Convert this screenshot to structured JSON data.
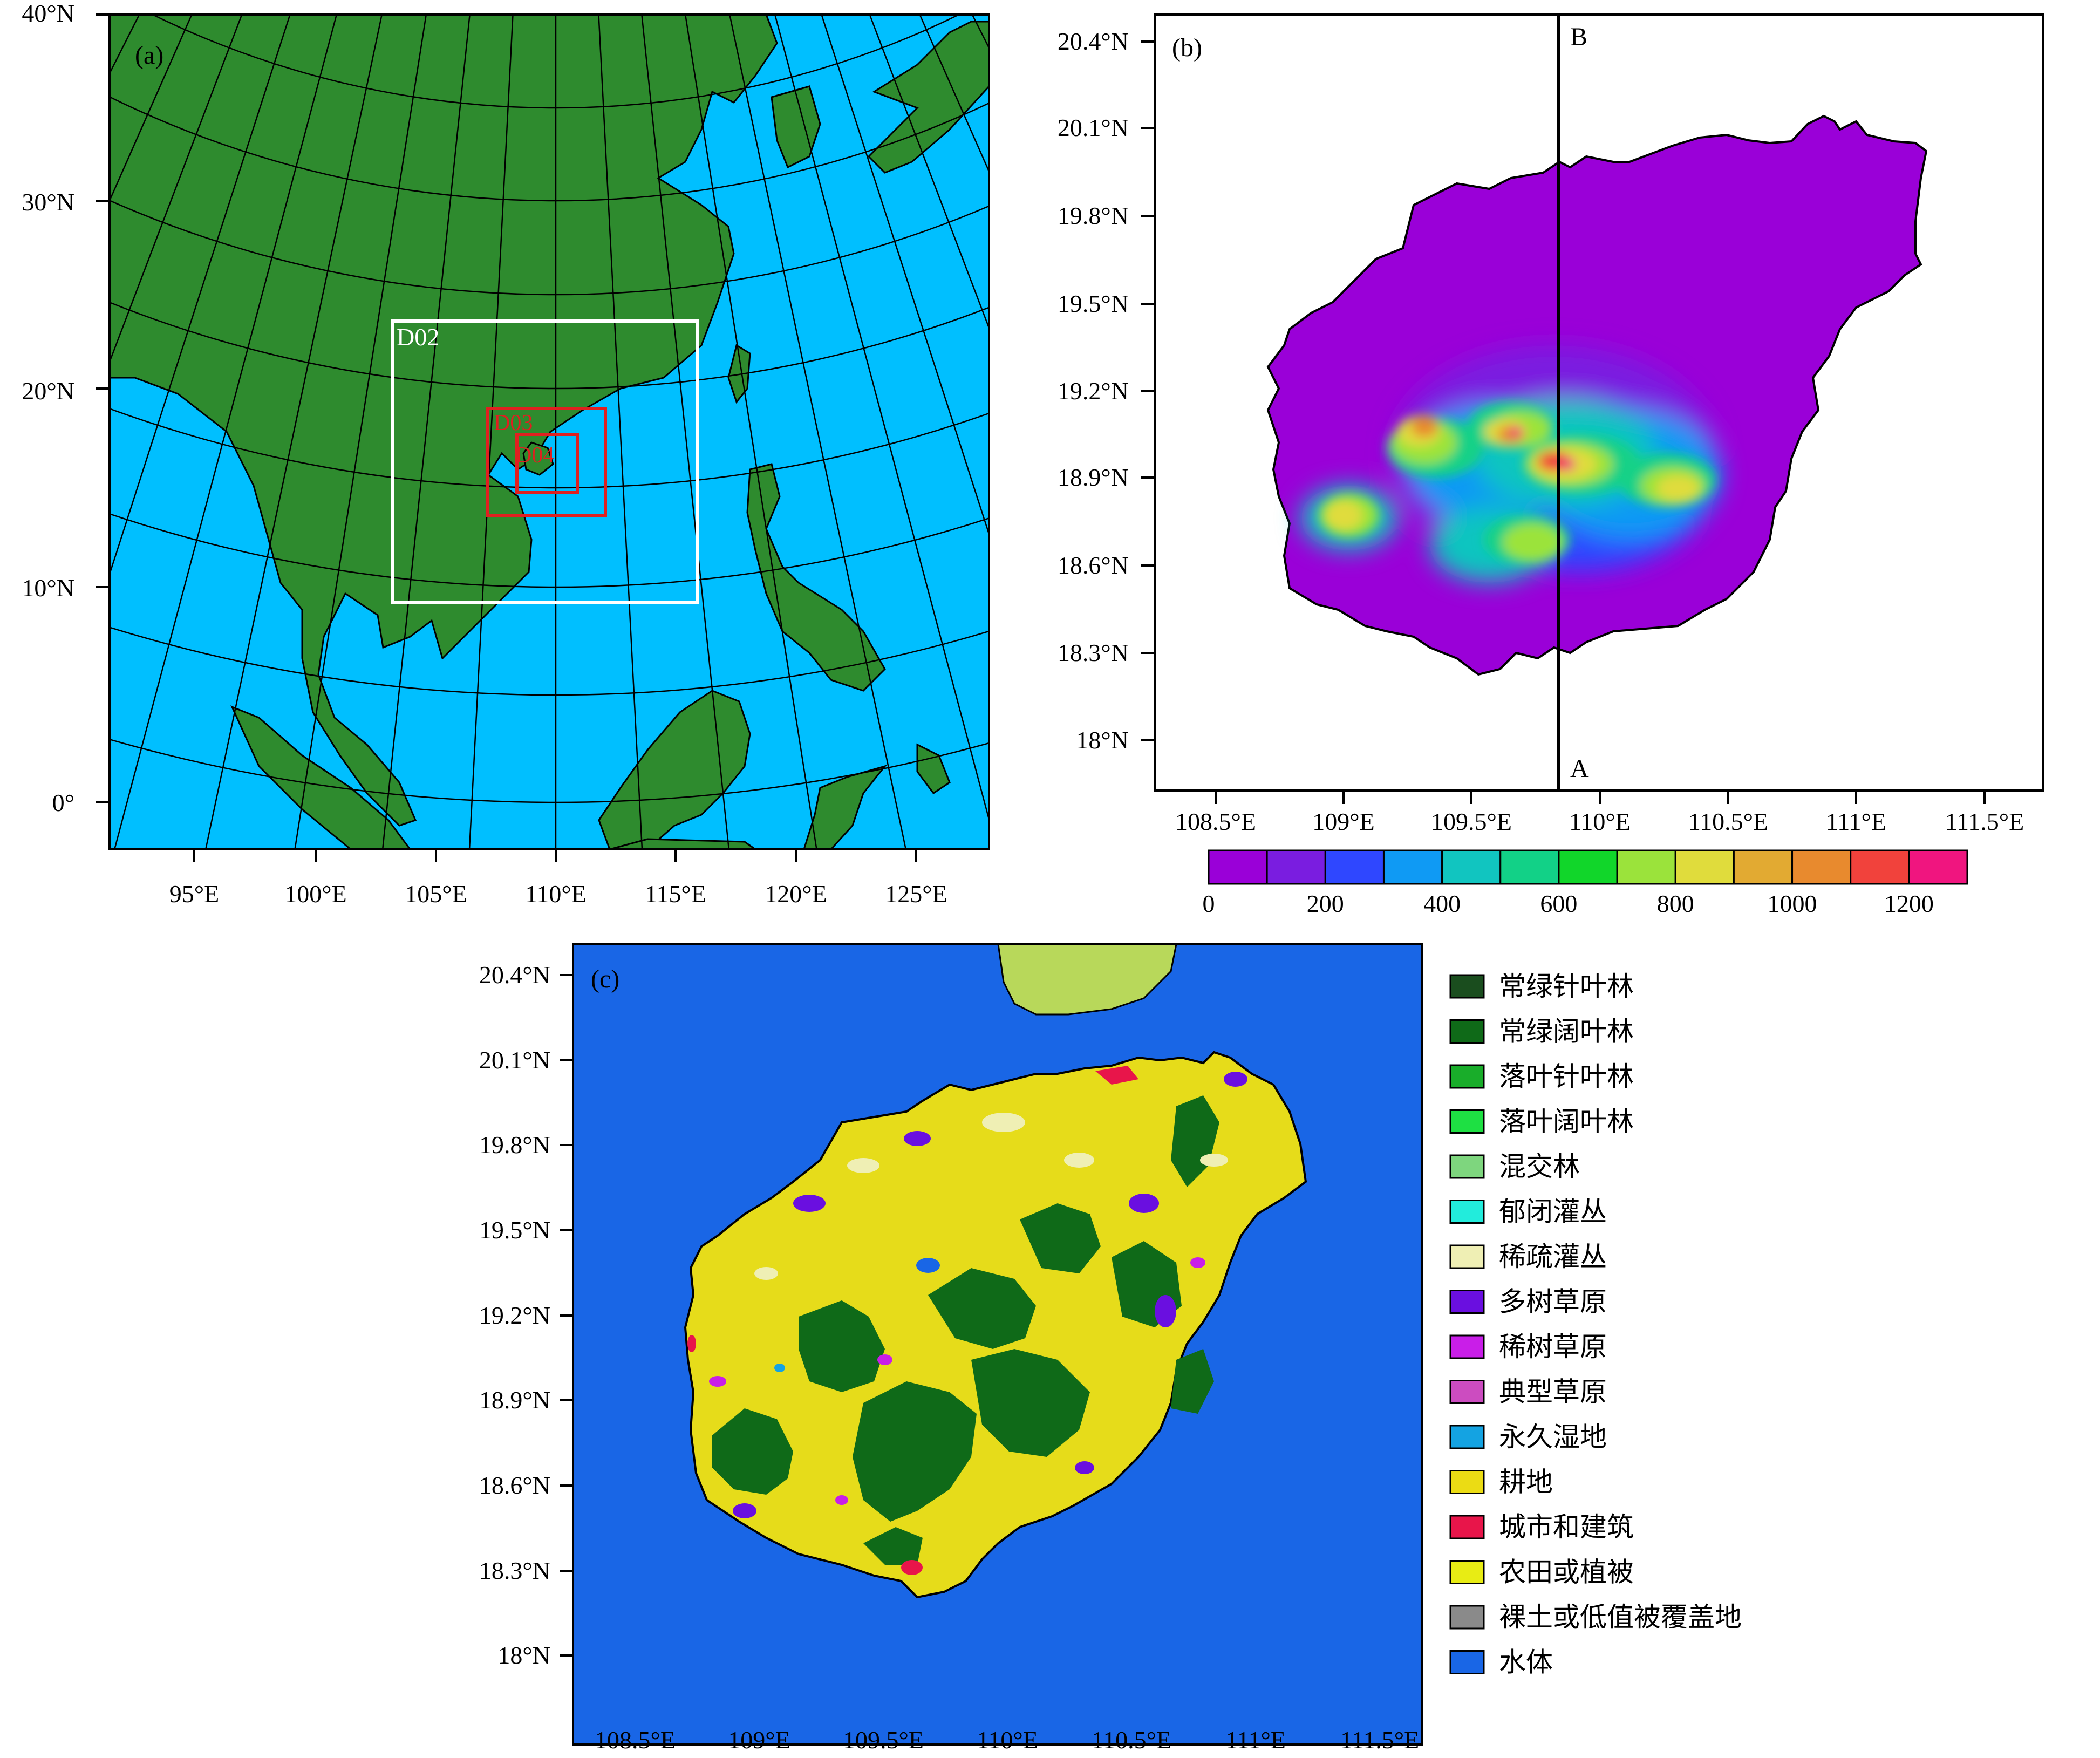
{
  "colors": {
    "ocean": "#00bfff",
    "land": "#2e8b2e",
    "water_body": "#1966e6",
    "box_white": "#ffffff",
    "box_red": "#e02020",
    "island_base_b": "#9a00d8"
  },
  "panel_a": {
    "label": "(a)",
    "lat_labels": [
      "40°N",
      "30°N",
      "20°N",
      "10°N",
      "0°"
    ],
    "lon_labels": [
      "95°E",
      "100°E",
      "105°E",
      "110°E",
      "115°E",
      "120°E",
      "125°E"
    ],
    "domains": [
      {
        "name": "D02",
        "color": "white"
      },
      {
        "name": "D03",
        "color": "red"
      },
      {
        "name": "D04",
        "color": "red"
      }
    ]
  },
  "panel_b": {
    "label": "(b)",
    "lat_labels": [
      "20.4°N",
      "20.1°N",
      "19.8°N",
      "19.5°N",
      "19.2°N",
      "18.9°N",
      "18.6°N",
      "18.3°N",
      "18°N"
    ],
    "lon_labels": [
      "108.5°E",
      "109°E",
      "109.5°E",
      "110°E",
      "110.5°E",
      "111°E",
      "111.5°E"
    ],
    "section_top": "B",
    "section_bottom": "A",
    "colorbar": {
      "min": 0,
      "max": 1300,
      "step": 100,
      "tick_labels": [
        "0",
        "200",
        "400",
        "600",
        "800",
        "1000",
        "1200"
      ],
      "colors": [
        "#9a00d8",
        "#7a1de0",
        "#2f47ff",
        "#0f9af4",
        "#11c5c0",
        "#12d187",
        "#11d62a",
        "#9be33b",
        "#e0dc3c",
        "#e2aa32",
        "#e88a2e",
        "#f1423c",
        "#f0157f"
      ]
    }
  },
  "panel_c": {
    "label": "(c)",
    "lat_labels": [
      "20.4°N",
      "20.1°N",
      "19.8°N",
      "19.5°N",
      "19.2°N",
      "18.9°N",
      "18.6°N",
      "18.3°N",
      "18°N"
    ],
    "lon_labels": [
      "108.5°E",
      "109°E",
      "109.5°E",
      "110°E",
      "110.5°E",
      "111°E",
      "111.5°E"
    ],
    "legend": [
      {
        "label": "常绿针叶林",
        "color": "#1a4d1e"
      },
      {
        "label": "常绿阔叶林",
        "color": "#0f6a18"
      },
      {
        "label": "落叶针叶林",
        "color": "#19ad2a"
      },
      {
        "label": "落叶阔叶林",
        "color": "#1ee043"
      },
      {
        "label": "混交林",
        "color": "#7ed67e"
      },
      {
        "label": "郁闭灌丛",
        "color": "#22ecdc"
      },
      {
        "label": "稀疏灌丛",
        "color": "#efefb4"
      },
      {
        "label": "多树草原",
        "color": "#6a0fe0"
      },
      {
        "label": "稀树草原",
        "color": "#c91ee8"
      },
      {
        "label": "典型草原",
        "color": "#cc4cc0"
      },
      {
        "label": "永久湿地",
        "color": "#14a3e2"
      },
      {
        "label": "耕地",
        "color": "#ebdc14"
      },
      {
        "label": "城市和建筑",
        "color": "#e8154a"
      },
      {
        "label": "农田或植被",
        "color": "#e8ec14"
      },
      {
        "label": "裸土或低值被覆盖地",
        "color": "#8a8a8a"
      },
      {
        "label": "水体",
        "color": "#1966e6"
      }
    ]
  }
}
